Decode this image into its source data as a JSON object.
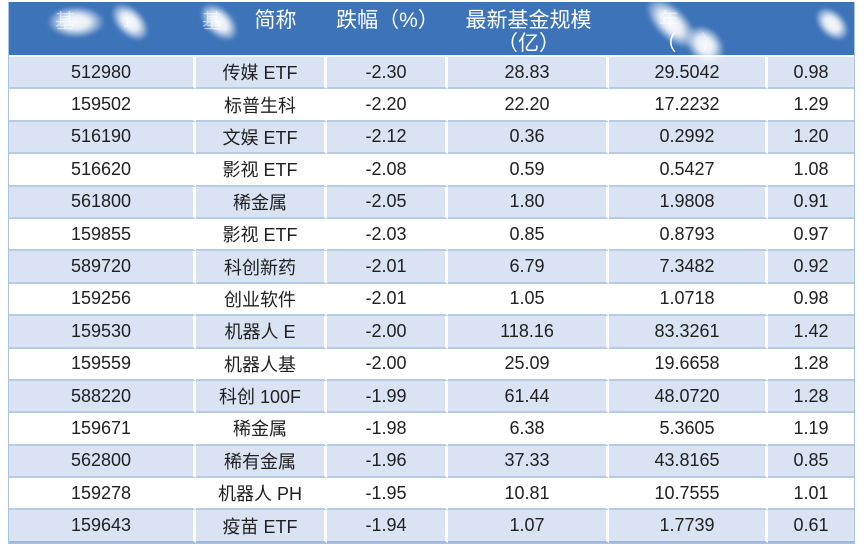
{
  "colors": {
    "header_bg": "#3d73b9",
    "band_row_bg": "#dae3f3",
    "white_row_bg": "#ffffff",
    "grid_line": "#b6cbe8",
    "outer_border": "#9db9dd",
    "header_text": "#ffffff",
    "body_text": "#212121"
  },
  "header": {
    "col1": {
      "fragment1": "基",
      "fragment2": "1"
    },
    "col2": {
      "fragment": "基",
      "label": "简称"
    },
    "col3": {
      "label": "跌幅（%）"
    },
    "col4": {
      "line1": "最新基金规模",
      "line2": "（亿）"
    },
    "col5": {
      "fragment": "年",
      "paren_open": "（",
      "paren_close": "）"
    },
    "col6": {
      "label": ""
    }
  },
  "chart_data": {
    "type": "table",
    "title": "",
    "columns": [
      {
        "key": "fund_code",
        "label": "",
        "redacted": true
      },
      {
        "key": "fund_name_short",
        "label": "简称",
        "partially_redacted": true
      },
      {
        "key": "decline_pct",
        "label": "跌幅（%）",
        "redacted": false
      },
      {
        "key": "latest_fund_size_yi",
        "label": "最新基金规模（亿）",
        "redacted": false
      },
      {
        "key": "col5_value_yi",
        "label": "（亿）",
        "partially_redacted": true
      },
      {
        "key": "col6_value",
        "label": "",
        "redacted": true
      }
    ],
    "rows": [
      [
        "512980",
        "传媒 ETF",
        "-2.30",
        "28.83",
        "29.5042",
        "0.98"
      ],
      [
        "159502",
        "标普生科",
        "-2.20",
        "22.20",
        "17.2232",
        "1.29"
      ],
      [
        "516190",
        "文娱 ETF",
        "-2.12",
        "0.36",
        "0.2992",
        "1.20"
      ],
      [
        "516620",
        "影视 ETF",
        "-2.08",
        "0.59",
        "0.5427",
        "1.08"
      ],
      [
        "561800",
        "稀金属",
        "-2.05",
        "1.80",
        "1.9808",
        "0.91"
      ],
      [
        "159855",
        "影视 ETF",
        "-2.03",
        "0.85",
        "0.8793",
        "0.97"
      ],
      [
        "589720",
        "科创新药",
        "-2.01",
        "6.79",
        "7.3482",
        "0.92"
      ],
      [
        "159256",
        "创业软件",
        "-2.01",
        "1.05",
        "1.0718",
        "0.98"
      ],
      [
        "159530",
        "机器人 E",
        "-2.00",
        "118.16",
        "83.3261",
        "1.42"
      ],
      [
        "159559",
        "机器人基",
        "-2.00",
        "25.09",
        "19.6658",
        "1.28"
      ],
      [
        "588220",
        "科创 100F",
        "-1.99",
        "61.44",
        "48.0720",
        "1.28"
      ],
      [
        "159671",
        "稀金属",
        "-1.98",
        "6.38",
        "5.3605",
        "1.19"
      ],
      [
        "562800",
        "稀有金属",
        "-1.96",
        "37.33",
        "43.8165",
        "0.85"
      ],
      [
        "159278",
        "机器人 PH",
        "-1.95",
        "10.81",
        "10.7555",
        "1.01"
      ],
      [
        "159643",
        "疫苗 ETF",
        "-1.94",
        "1.07",
        "1.7739",
        "0.61"
      ]
    ]
  }
}
